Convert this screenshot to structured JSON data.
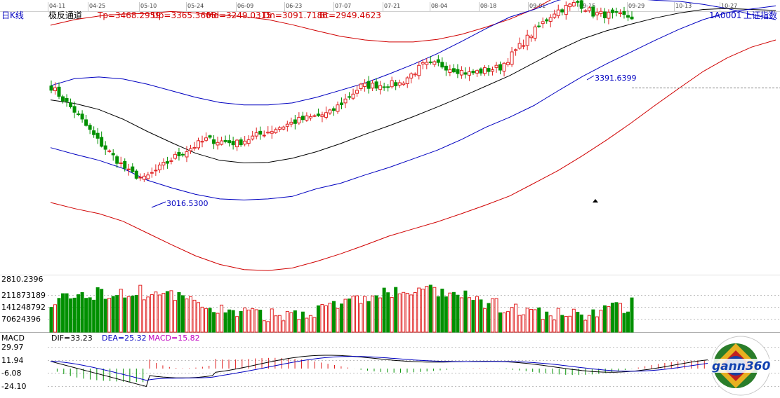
{
  "header": {
    "period": "日K线",
    "indicator_name": "极反通道",
    "tp": "Tp=3468.2959",
    "up": "Up=3365.3608",
    "md": "Md=3249.0315",
    "dn": "Dn=3091.7186",
    "bt": "Bt=2949.4623",
    "symbol": "1A0001",
    "index_name": "上证指数"
  },
  "x_axis": {
    "dates": [
      "04-11",
      "04-25",
      "05-10",
      "05-24",
      "06-09",
      "06-23",
      "07-07",
      "07-21",
      "08-04",
      "08-18",
      "09-01",
      "09-15",
      "09-29",
      "10-13",
      "10-27"
    ]
  },
  "annotations": {
    "high_label": "3391.6399",
    "low_label": "3016.5300"
  },
  "volume": {
    "labels": [
      "2810.2396",
      "211873189",
      "141248792",
      "70624396"
    ]
  },
  "macd": {
    "title": "MACD",
    "dif": "DIF=33.23",
    "dea": "DEA=25.32",
    "macd": "MACD=15.82",
    "ticks": [
      "29.97",
      "11.94",
      "-6.08",
      "-24.10"
    ]
  },
  "logo": {
    "text": "gann360"
  },
  "colors": {
    "up": "#e02020",
    "down": "#009000",
    "md": "#000000",
    "band_blue": "#0000c0",
    "band_red": "#d00000",
    "dif_line": "#000000",
    "dea_line": "#0000c0",
    "macd_text": "#c000c0"
  },
  "chart_data": [
    {
      "type": "candlestick",
      "title": "上证指数 日K线",
      "series": [
        {
          "name": "Tp",
          "values": [
            3329,
            3340,
            3347,
            3351,
            3352,
            3356,
            3353,
            3349,
            3346,
            3340,
            3330,
            3318,
            3307,
            3300,
            3296,
            3296,
            3301,
            3311,
            3325,
            3341,
            3361,
            3387,
            3414,
            3440,
            3463,
            3470,
            3467,
            3460,
            3450,
            3440,
            3429
          ]
        },
        {
          "name": "Up",
          "values": [
            3210,
            3224,
            3227,
            3223,
            3213,
            3200,
            3187,
            3177,
            3172,
            3172,
            3176,
            3187,
            3201,
            3215,
            3233,
            3252,
            3273,
            3297,
            3322,
            3345,
            3360,
            3378,
            3388,
            3387,
            3382,
            3378,
            3376,
            3370,
            3362,
            3350,
            3340
          ]
        },
        {
          "name": "Md",
          "values": [
            3182,
            3175,
            3163,
            3144,
            3120,
            3098,
            3077,
            3063,
            3058,
            3059,
            3067,
            3080,
            3096,
            3114,
            3131,
            3149,
            3168,
            3188,
            3209,
            3230,
            3255,
            3280,
            3302,
            3318,
            3331,
            3343,
            3353,
            3360,
            3362,
            3360,
            3358
          ]
        },
        {
          "name": "Dn",
          "values": [
            3088,
            3075,
            3063,
            3047,
            3024,
            3009,
            2996,
            2987,
            2985,
            2987,
            2992,
            3007,
            3018,
            3034,
            3049,
            3066,
            3083,
            3104,
            3128,
            3148,
            3171,
            3200,
            3228,
            3253,
            3276,
            3299,
            3321,
            3340,
            3354,
            3361,
            3367
          ]
        },
        {
          "name": "Bt",
          "values": [
            2980,
            2968,
            2958,
            2943,
            2920,
            2897,
            2875,
            2858,
            2848,
            2846,
            2851,
            2864,
            2879,
            2896,
            2914,
            2928,
            2942,
            2958,
            2975,
            2993,
            3018,
            3043,
            3072,
            3103,
            3136,
            3171,
            3205,
            3238,
            3265,
            3286,
            3300
          ]
        }
      ],
      "prices": {
        "start_close": 3208.0,
        "low": 3016.53,
        "high": 3391.64,
        "last_close": 3342.0
      }
    }
  ]
}
